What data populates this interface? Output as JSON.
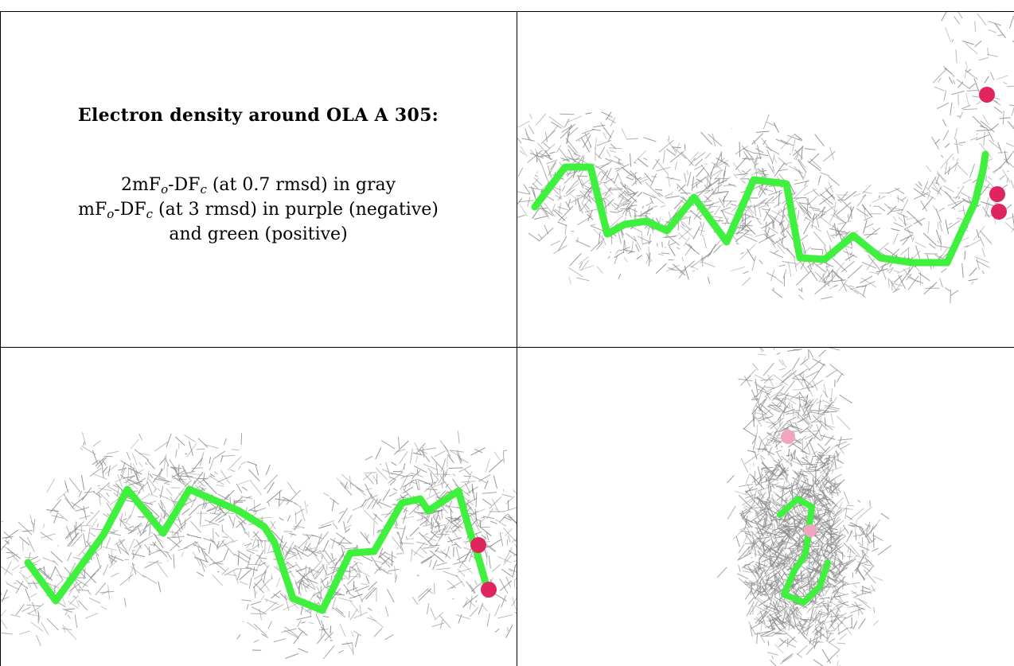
{
  "panel": {
    "title": "Electron density around OLA A 305:",
    "line1": {
      "pre": "2mF",
      "s1": "o",
      "mid": "-DF",
      "s2": "c",
      "post": " (at 0.7 rmsd) in gray"
    },
    "line2": {
      "pre": "mF",
      "s1": "o",
      "mid": "-DF",
      "s2": "c",
      "post": " (at 3 rmsd) in purple (negative)"
    },
    "line3": "and green (positive)"
  },
  "colors": {
    "mesh": "#8c8c8c",
    "carbon": "#3ff03f",
    "oxygen": "#e0245e",
    "oxygen_light": "#f2a4c0",
    "border": "#000000"
  },
  "images": {
    "top_right": "ligand-density-view-side",
    "bottom_left": "ligand-density-view-front",
    "bottom_right": "ligand-density-view-end-on"
  }
}
